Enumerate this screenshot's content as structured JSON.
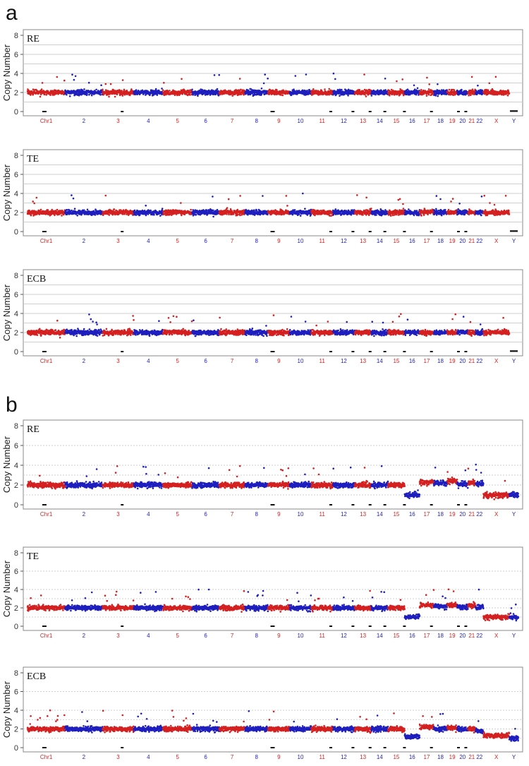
{
  "figure": {
    "panel_letters": [
      "a",
      "b"
    ],
    "colors": {
      "odd": "#d42020",
      "even": "#1f1fbf",
      "frame": "#888888",
      "grid": "#cfcfcf",
      "gap": "#111111"
    },
    "chromosome_labels": [
      "Chr1",
      "2",
      "3",
      "4",
      "5",
      "6",
      "7",
      "8",
      "9",
      "10",
      "11",
      "12",
      "13",
      "14",
      "15",
      "16",
      "17",
      "18",
      "19",
      "20",
      "21",
      "22",
      "X",
      "Y"
    ]
  },
  "chart_data": [
    {
      "type": "scatter",
      "group": "a",
      "title": "RE",
      "ylabel": "Copy Number",
      "ylim": [
        0,
        8
      ],
      "yticks": [
        0,
        2,
        4,
        6,
        8
      ],
      "grid": "solid",
      "profile": [
        2,
        2,
        2,
        2,
        2,
        2,
        2,
        2,
        2,
        2,
        2,
        2,
        2,
        2,
        2,
        2,
        2,
        2,
        2,
        2,
        2,
        2,
        2,
        0
      ]
    },
    {
      "type": "scatter",
      "group": "a",
      "title": "TE",
      "ylabel": "Copy Number",
      "ylim": [
        0,
        8
      ],
      "yticks": [
        0,
        2,
        4,
        6,
        8
      ],
      "grid": "solid",
      "profile": [
        2,
        2,
        2,
        2,
        2,
        2,
        2,
        2,
        2,
        2,
        2,
        2,
        2,
        2,
        2,
        2,
        2,
        2,
        2,
        2,
        2,
        2,
        2,
        0
      ]
    },
    {
      "type": "scatter",
      "group": "a",
      "title": "ECB",
      "ylabel": "Copy Number",
      "ylim": [
        0,
        8
      ],
      "yticks": [
        0,
        2,
        4,
        6,
        8
      ],
      "grid": "solid",
      "profile": [
        2,
        2,
        2,
        2,
        2,
        2,
        2,
        2,
        2,
        2,
        2,
        2,
        2,
        2,
        2,
        2,
        2,
        2,
        2,
        2,
        2,
        2,
        2,
        0
      ]
    },
    {
      "type": "scatter",
      "group": "b",
      "title": "RE",
      "ylabel": "Copy Number",
      "ylim": [
        0,
        8
      ],
      "yticks": [
        0,
        2,
        4,
        6,
        8
      ],
      "grid": "dotted",
      "profile": [
        2,
        2,
        2,
        2,
        2,
        2,
        2,
        2,
        2,
        2,
        2,
        2,
        2,
        2,
        2,
        1,
        2.3,
        2.2,
        2.4,
        2.1,
        2.2,
        2.1,
        1,
        1
      ]
    },
    {
      "type": "scatter",
      "group": "b",
      "title": "TE",
      "ylabel": "Copy Number",
      "ylim": [
        0,
        8
      ],
      "yticks": [
        0,
        2,
        4,
        6,
        8
      ],
      "grid": "dotted",
      "profile": [
        2,
        2,
        2,
        2,
        2,
        2,
        2,
        2,
        2,
        2,
        2,
        2,
        2,
        2,
        2,
        1,
        2.3,
        2.2,
        2.3,
        2.1,
        2.2,
        2.1,
        1,
        1
      ]
    },
    {
      "type": "scatter",
      "group": "b",
      "title": "ECB",
      "ylabel": "Copy Number",
      "ylim": [
        0,
        8
      ],
      "yticks": [
        0,
        2,
        4,
        6,
        8
      ],
      "grid": "dotted",
      "profile": [
        2,
        2,
        2,
        2,
        2,
        2,
        2,
        2,
        2,
        2,
        2,
        2,
        2,
        2,
        2,
        1.2,
        2.2,
        2,
        2.1,
        2,
        2,
        1.8,
        1.3,
        1
      ]
    }
  ]
}
